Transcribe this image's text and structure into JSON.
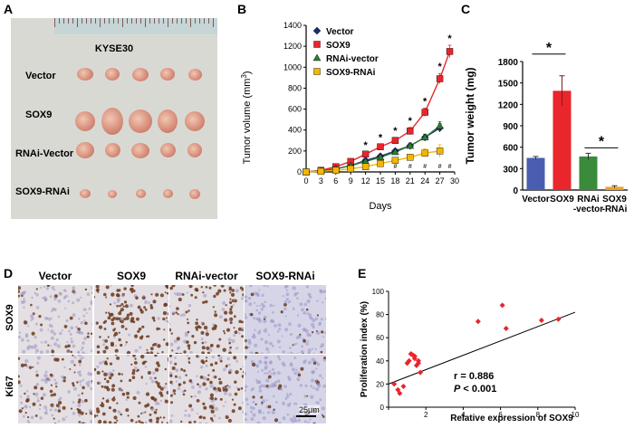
{
  "panels": {
    "a": "A",
    "b": "B",
    "c": "C",
    "d": "D",
    "e": "E"
  },
  "photo": {
    "title": "KYSE30",
    "rows": [
      "Vector",
      "SOX9",
      "RNAi-Vector",
      "SOX9-RNAi"
    ],
    "colors": {
      "tumor": "#d8907d",
      "background": "#d9d9d4",
      "ruler": "#c6d5d6"
    }
  },
  "ihc": {
    "columns": [
      "Vector",
      "SOX9",
      "RNAi-vector",
      "SOX9-RNAi"
    ],
    "rows": [
      "SOX9",
      "Ki67"
    ],
    "scale_bar": "25μm"
  },
  "chart_data": [
    {
      "id": "B",
      "type": "line",
      "title": "",
      "xlabel": "Days",
      "ylabel": "Tumor volume (mm3)",
      "x": [
        0,
        3,
        6,
        9,
        12,
        15,
        18,
        21,
        24,
        27
      ],
      "xticks": [
        0,
        3,
        6,
        9,
        12,
        15,
        18,
        21,
        24,
        27,
        30
      ],
      "yticks": [
        0,
        200,
        400,
        600,
        800,
        1000,
        1200,
        1400
      ],
      "xlim": [
        0,
        30
      ],
      "ylim": [
        0,
        1400
      ],
      "series": [
        {
          "name": "Vector",
          "color": "#1f2a6b",
          "marker": "diamond",
          "values": [
            0,
            10,
            30,
            60,
            110,
            150,
            200,
            250,
            330,
            420
          ],
          "errors": [
            0,
            4,
            8,
            10,
            15,
            18,
            20,
            25,
            30,
            40
          ]
        },
        {
          "name": "SOX9",
          "color": "#e8262b",
          "marker": "square",
          "values": [
            0,
            15,
            50,
            100,
            170,
            240,
            300,
            390,
            570,
            890,
            1150
          ],
          "x": [
            0,
            3,
            6,
            9,
            12,
            15,
            18,
            21,
            24,
            27,
            29
          ],
          "errors": [
            0,
            5,
            10,
            15,
            20,
            25,
            30,
            35,
            40,
            50,
            60
          ]
        },
        {
          "name": "RNAi-vector",
          "color": "#2e7d32",
          "marker": "triangle",
          "values": [
            0,
            10,
            30,
            60,
            100,
            140,
            190,
            250,
            330,
            440
          ],
          "errors": [
            0,
            4,
            8,
            10,
            15,
            18,
            22,
            25,
            30,
            40
          ]
        },
        {
          "name": "SOX9-RNAi",
          "color": "#f2b705",
          "marker": "square",
          "values": [
            0,
            5,
            15,
            30,
            50,
            80,
            110,
            140,
            180,
            200
          ],
          "errors": [
            0,
            3,
            5,
            8,
            10,
            15,
            20,
            25,
            40,
            60
          ]
        }
      ],
      "annotations": {
        "star_days": [
          12,
          15,
          18,
          21,
          24,
          27,
          29
        ],
        "star_label": "*",
        "hash_days": [
          18,
          21,
          24,
          27,
          29
        ],
        "hash_label": "#"
      },
      "legend": "top-left"
    },
    {
      "id": "C",
      "type": "bar",
      "title": "",
      "ylabel": "Tumor weight (mg)",
      "categories": [
        "Vector",
        "SOX9",
        "RNAi -vector",
        "SOX9 -RNAi"
      ],
      "values": [
        450,
        1390,
        470,
        45
      ],
      "errors": [
        20,
        210,
        45,
        15
      ],
      "colors": [
        "#4a5db0",
        "#e8262b",
        "#3a8c3a",
        "#f0a020"
      ],
      "yticks": [
        0,
        300,
        600,
        900,
        1200,
        1500,
        1800
      ],
      "ylim": [
        0,
        1800
      ],
      "significance": [
        {
          "between": [
            0,
            1
          ],
          "label": "*"
        },
        {
          "between": [
            2,
            3
          ],
          "label": "*"
        }
      ]
    },
    {
      "id": "E",
      "type": "scatter",
      "title": "",
      "xlabel": "Relative expression of SOX9",
      "ylabel": "Proliferation index (%)",
      "xticks": [
        0,
        2,
        4,
        6,
        8,
        10
      ],
      "yticks": [
        0,
        20,
        40,
        60,
        80,
        100
      ],
      "xlim": [
        0,
        10
      ],
      "ylim": [
        0,
        100
      ],
      "points": {
        "x": [
          0.3,
          0.5,
          0.6,
          0.8,
          1.0,
          1.1,
          1.2,
          1.3,
          1.4,
          1.5,
          1.6,
          1.7,
          1.2,
          1.4,
          1.6,
          4.8,
          6.1,
          6.3,
          8.2,
          9.1
        ],
        "y": [
          20,
          15,
          12,
          18,
          38,
          40,
          46,
          45,
          42,
          36,
          38,
          30,
          46,
          44,
          40,
          74,
          88,
          68,
          75,
          76
        ]
      },
      "fit_line": {
        "x": [
          0,
          10
        ],
        "y": [
          20,
          82
        ]
      },
      "color": "#e8262b",
      "annotation_r": "r = 0.886",
      "annotation_p": "P < 0.001"
    }
  ]
}
